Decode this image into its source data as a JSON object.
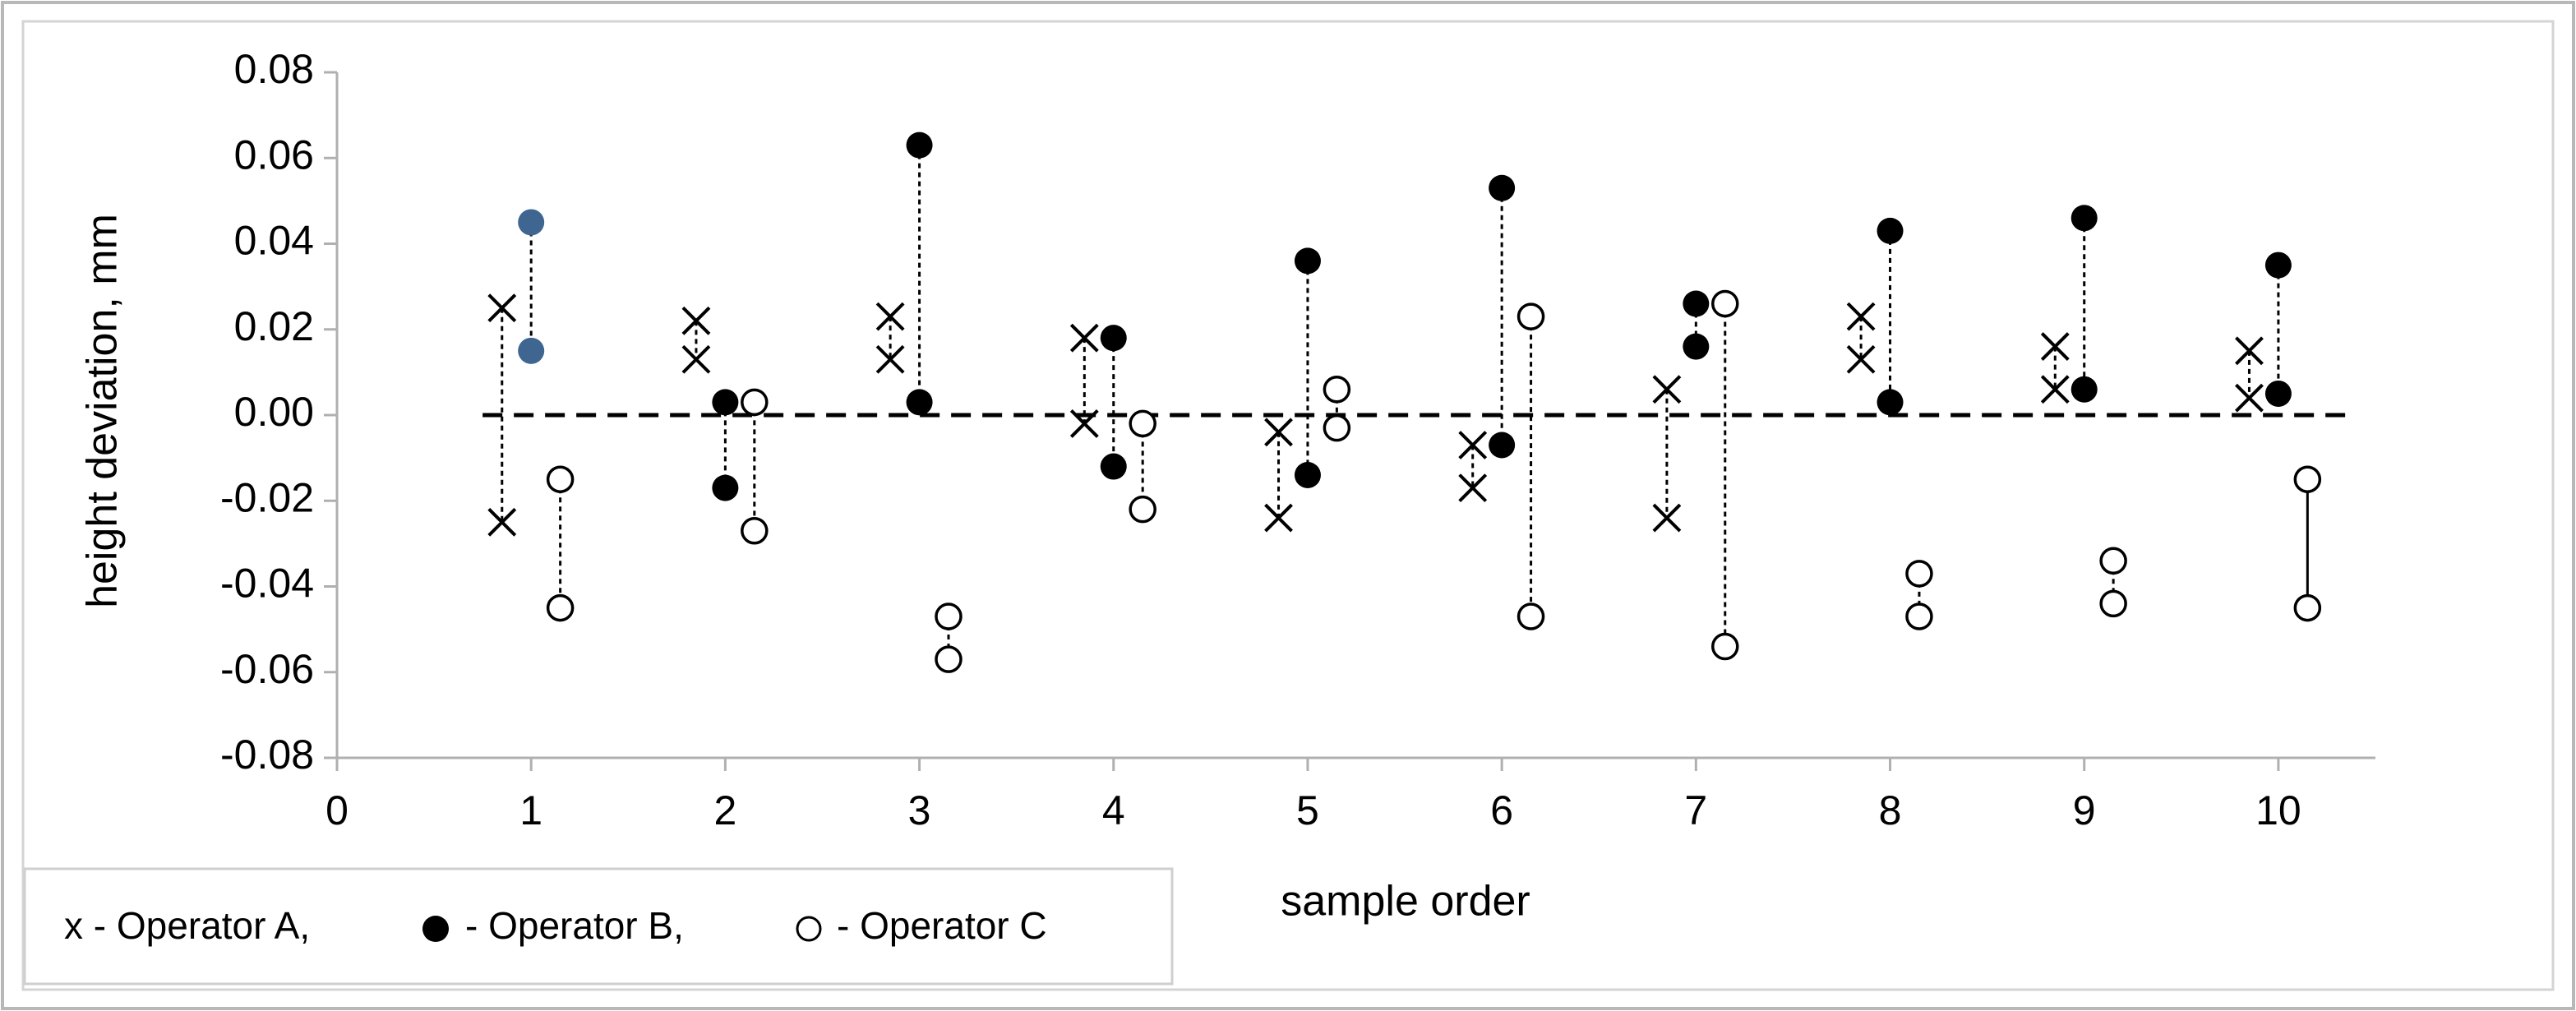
{
  "chart_data": {
    "type": "scatter",
    "title": "",
    "xlabel": "sample order",
    "ylabel": "height  deviation, mm",
    "xlim": [
      0,
      10.5
    ],
    "ylim": [
      -0.08,
      0.08
    ],
    "x_ticks": [
      "0",
      "1",
      "2",
      "3",
      "4",
      "5",
      "6",
      "7",
      "8",
      "9",
      "10"
    ],
    "y_ticks": [
      "-0.08",
      "-0.06",
      "-0.04",
      "-0.02",
      "0.00",
      "0.02",
      "0.04",
      "0.06",
      "0.08"
    ],
    "reference_line": {
      "y": 0,
      "style": "dashed"
    },
    "legend": {
      "text": "x - Operator A,    - Operator B,    - Operator C",
      "parts": {
        "a": "x - Operator A,",
        "b": "- Operator B,",
        "c": "- Operator C"
      },
      "placement": "bottom-left"
    },
    "series": [
      {
        "marker": "x",
        "color": "#000000",
        "points": [
          {
            "x": 0.85,
            "lo": -0.025,
            "hi": 0.025
          },
          {
            "x": 1.85,
            "lo": 0.013,
            "hi": 0.022
          },
          {
            "x": 2.85,
            "lo": 0.013,
            "hi": 0.023
          },
          {
            "x": 3.85,
            "lo": -0.002,
            "hi": 0.018
          },
          {
            "x": 4.85,
            "lo": -0.024,
            "hi": -0.004
          },
          {
            "x": 5.85,
            "lo": -0.017,
            "hi": -0.007
          },
          {
            "x": 6.85,
            "lo": -0.024,
            "hi": 0.006
          },
          {
            "x": 7.85,
            "lo": 0.013,
            "hi": 0.023
          },
          {
            "x": 8.85,
            "lo": 0.006,
            "hi": 0.016
          },
          {
            "x": 9.85,
            "lo": 0.004,
            "hi": 0.015
          }
        ]
      },
      {
        "marker": "filled-circle",
        "color": "#000000",
        "points": [
          {
            "x": 1.0,
            "lo": 0.015,
            "hi": 0.045,
            "color": "#3f6591"
          },
          {
            "x": 2.0,
            "lo": -0.017,
            "hi": 0.003
          },
          {
            "x": 3.0,
            "lo": 0.003,
            "hi": 0.063
          },
          {
            "x": 4.0,
            "lo": -0.012,
            "hi": 0.018
          },
          {
            "x": 5.0,
            "lo": -0.014,
            "hi": 0.036
          },
          {
            "x": 6.0,
            "lo": -0.007,
            "hi": 0.053
          },
          {
            "x": 7.0,
            "lo": 0.016,
            "hi": 0.026
          },
          {
            "x": 8.0,
            "lo": 0.003,
            "hi": 0.043
          },
          {
            "x": 9.0,
            "lo": 0.006,
            "hi": 0.046
          },
          {
            "x": 10.0,
            "lo": 0.005,
            "hi": 0.035
          }
        ]
      },
      {
        "marker": "open-circle",
        "color": "#000000",
        "points": [
          {
            "x": 1.15,
            "lo": -0.045,
            "hi": -0.015
          },
          {
            "x": 2.15,
            "lo": -0.027,
            "hi": 0.003
          },
          {
            "x": 3.15,
            "lo": -0.057,
            "hi": -0.047
          },
          {
            "x": 4.15,
            "lo": -0.022,
            "hi": -0.002
          },
          {
            "x": 5.15,
            "lo": -0.003,
            "hi": 0.006
          },
          {
            "x": 6.15,
            "lo": -0.047,
            "hi": 0.023
          },
          {
            "x": 7.15,
            "lo": -0.054,
            "hi": 0.026
          },
          {
            "x": 8.15,
            "lo": -0.047,
            "hi": -0.037
          },
          {
            "x": 9.15,
            "lo": -0.044,
            "hi": -0.034
          },
          {
            "x": 10.15,
            "lo": -0.045,
            "hi": -0.015,
            "solid": true
          }
        ]
      }
    ]
  }
}
